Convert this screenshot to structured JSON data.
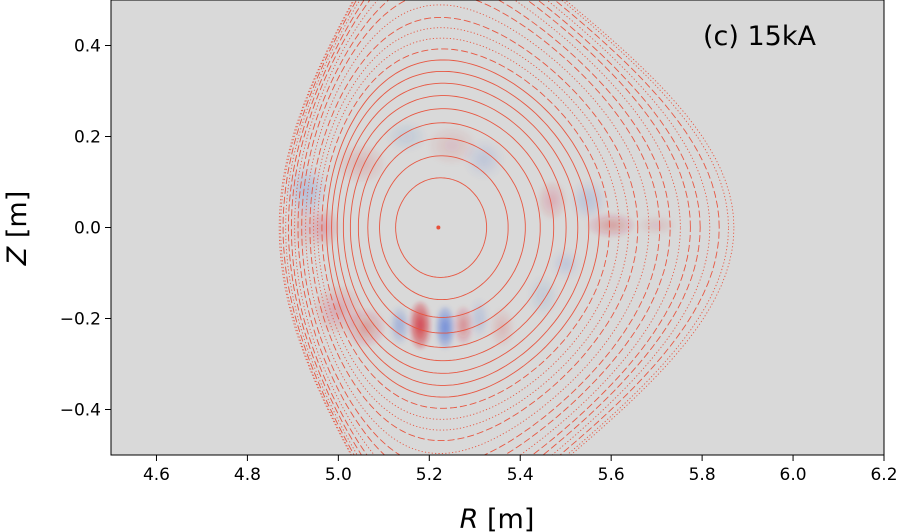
{
  "chart_data": {
    "type": "contour",
    "title": "(c) 15kA",
    "xlabel": {
      "var": "R",
      "unit": " [m]"
    },
    "ylabel": {
      "var": "Z",
      "unit": " [m]"
    },
    "xlim": [
      4.5,
      6.2
    ],
    "ylim": [
      -0.5,
      0.5
    ],
    "xticks": [
      4.6,
      4.8,
      5.0,
      5.2,
      5.4,
      5.6,
      5.8,
      6.0,
      6.2
    ],
    "xtick_labels": [
      "4.6",
      "4.8",
      "5.0",
      "5.2",
      "5.4",
      "5.6",
      "5.8",
      "6.0",
      "6.2"
    ],
    "yticks": [
      -0.4,
      -0.2,
      0.0,
      0.2,
      0.4
    ],
    "ytick_labels": [
      "−0.4",
      "−0.2",
      "0.0",
      "0.2",
      "0.4"
    ],
    "background_color": "#d9d9d9",
    "contour_color": "#e8503a",
    "magnetic_axis": {
      "R": 5.22,
      "Z": 0.0
    },
    "separatrix": {
      "R_outer": 5.87,
      "R_inner": 4.87,
      "Z_top": 0.355,
      "Z_bottom": -0.36,
      "R_top": 5.04,
      "R_bottom": 5.1
    },
    "flux_surfaces": [
      {
        "psi": 0.04,
        "style": "solid"
      },
      {
        "psi": 0.08,
        "style": "solid"
      },
      {
        "psi": 0.12,
        "style": "solid"
      },
      {
        "psi": 0.16,
        "style": "solid"
      },
      {
        "psi": 0.2,
        "style": "solid"
      },
      {
        "psi": 0.24,
        "style": "solid"
      },
      {
        "psi": 0.28,
        "style": "solid"
      },
      {
        "psi": 0.32,
        "style": "solid"
      },
      {
        "psi": 0.36,
        "style": "solid"
      },
      {
        "psi": 0.4,
        "style": "dashed"
      },
      {
        "psi": 0.44,
        "style": "dotted"
      },
      {
        "psi": 0.48,
        "style": "dotted"
      },
      {
        "psi": 0.52,
        "style": "dashed"
      },
      {
        "psi": 0.57,
        "style": "dotted"
      },
      {
        "psi": 0.62,
        "style": "dashed"
      },
      {
        "psi": 0.67,
        "style": "dashed"
      },
      {
        "psi": 0.72,
        "style": "dotted"
      },
      {
        "psi": 0.77,
        "style": "dashed"
      },
      {
        "psi": 0.82,
        "style": "dashed"
      },
      {
        "psi": 0.87,
        "style": "dotted"
      },
      {
        "psi": 0.92,
        "style": "dashed"
      },
      {
        "psi": 0.97,
        "style": "dotted"
      },
      {
        "psi": 1.0,
        "style": "dotted"
      }
    ],
    "perturbation_blobs": [
      {
        "R": 5.18,
        "Z": -0.215,
        "sign": 1,
        "strength": 1.0,
        "sR": 0.022,
        "sZ": 0.05
      },
      {
        "R": 5.235,
        "Z": -0.22,
        "sign": -1,
        "strength": 0.75,
        "sR": 0.02,
        "sZ": 0.045
      },
      {
        "R": 5.135,
        "Z": -0.215,
        "sign": -1,
        "strength": 0.35,
        "sR": 0.02,
        "sZ": 0.04
      },
      {
        "R": 5.275,
        "Z": -0.215,
        "sign": 1,
        "strength": 0.4,
        "sR": 0.02,
        "sZ": 0.04
      },
      {
        "R": 5.06,
        "Z": -0.22,
        "sign": 1,
        "strength": 0.3,
        "sR": 0.04,
        "sZ": 0.04
      },
      {
        "R": 5.31,
        "Z": -0.2,
        "sign": -1,
        "strength": 0.2,
        "sR": 0.02,
        "sZ": 0.04
      },
      {
        "R": 5.36,
        "Z": -0.22,
        "sign": 1,
        "strength": 0.15,
        "sR": 0.025,
        "sZ": 0.04
      },
      {
        "R": 5.0,
        "Z": -0.18,
        "sign": 1,
        "strength": 0.22,
        "sR": 0.05,
        "sZ": 0.05
      },
      {
        "R": 4.93,
        "Z": 0.08,
        "sign": -1,
        "strength": 0.22,
        "sR": 0.04,
        "sZ": 0.05
      },
      {
        "R": 4.93,
        "Z": 0.0,
        "sign": 1,
        "strength": 0.12,
        "sR": 0.04,
        "sZ": 0.05
      },
      {
        "R": 4.97,
        "Z": 0.0,
        "sign": 1,
        "strength": 0.22,
        "sR": 0.03,
        "sZ": 0.04
      },
      {
        "R": 5.05,
        "Z": 0.14,
        "sign": 1,
        "strength": 0.15,
        "sR": 0.05,
        "sZ": 0.04
      },
      {
        "R": 5.15,
        "Z": 0.2,
        "sign": -1,
        "strength": 0.12,
        "sR": 0.04,
        "sZ": 0.03
      },
      {
        "R": 5.25,
        "Z": 0.18,
        "sign": 1,
        "strength": 0.12,
        "sR": 0.05,
        "sZ": 0.04
      },
      {
        "R": 5.32,
        "Z": 0.15,
        "sign": -1,
        "strength": 0.15,
        "sR": 0.04,
        "sZ": 0.04
      },
      {
        "R": 5.47,
        "Z": 0.06,
        "sign": 1,
        "strength": 0.2,
        "sR": 0.03,
        "sZ": 0.04
      },
      {
        "R": 5.55,
        "Z": 0.06,
        "sign": -1,
        "strength": 0.2,
        "sR": 0.035,
        "sZ": 0.04
      },
      {
        "R": 5.6,
        "Z": 0.005,
        "sign": 1,
        "strength": 0.3,
        "sR": 0.05,
        "sZ": 0.025
      },
      {
        "R": 5.7,
        "Z": 0.005,
        "sign": 1,
        "strength": 0.12,
        "sR": 0.04,
        "sZ": 0.02
      },
      {
        "R": 5.5,
        "Z": -0.08,
        "sign": -1,
        "strength": 0.15,
        "sR": 0.03,
        "sZ": 0.03
      },
      {
        "R": 5.45,
        "Z": -0.15,
        "sign": -1,
        "strength": 0.12,
        "sR": 0.03,
        "sZ": 0.04
      }
    ]
  }
}
